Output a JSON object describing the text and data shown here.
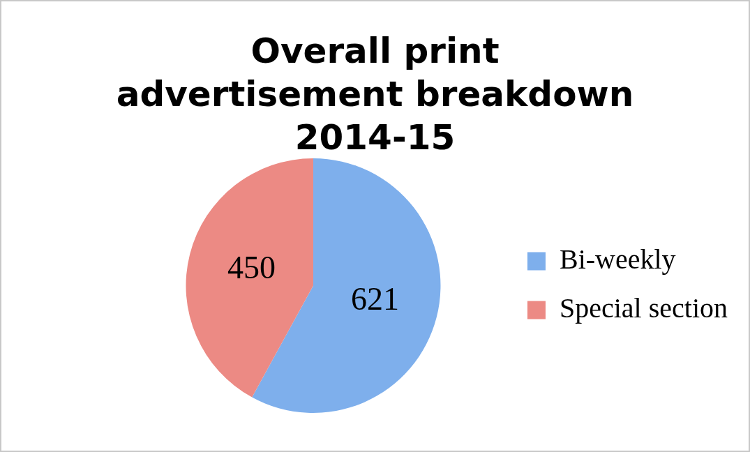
{
  "chart_data": {
    "type": "pie",
    "title": "Overall print advertisement breakdown 2014-15",
    "categories": [
      "Bi-weekly",
      "Special section"
    ],
    "values": [
      621,
      450
    ],
    "colors": [
      "#7eafec",
      "#ec8a84"
    ],
    "data_labels": true,
    "legend": "right"
  }
}
